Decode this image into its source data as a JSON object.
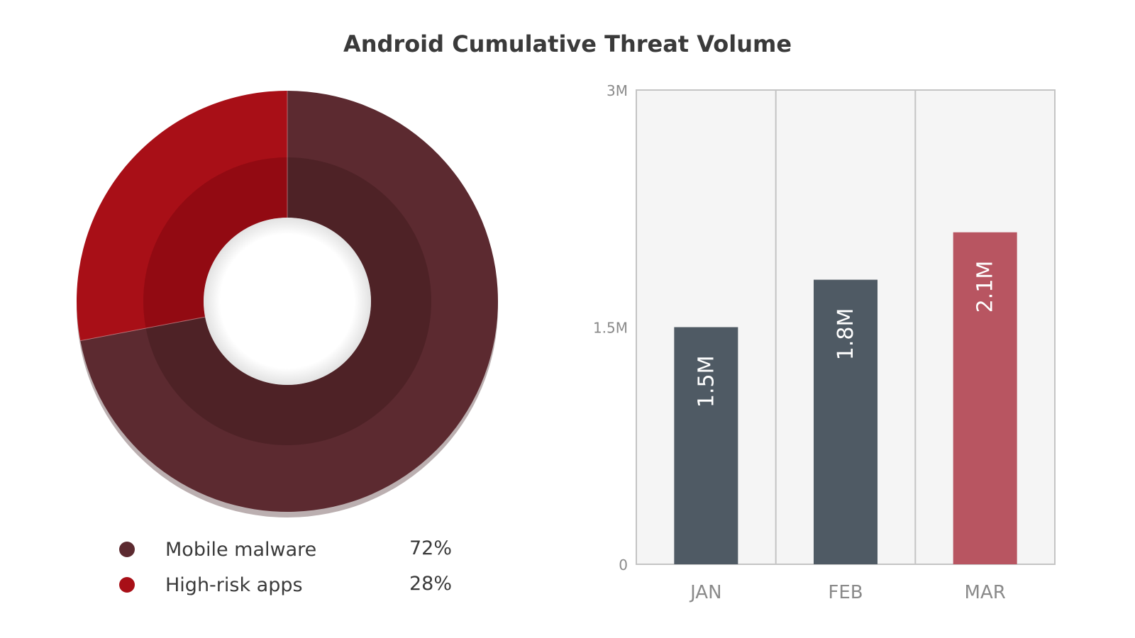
{
  "title": "Android Cumulative Threat Volume",
  "colors": {
    "malware": "#5c2a30",
    "malware_inner": "#4d2126",
    "highrisk": "#a80f17",
    "highrisk_inner": "#8f0a12",
    "bar_dark": "#4f5a64",
    "bar_highlight": "#b85561",
    "plot_bg": "#f5f5f5",
    "grid": "#c4c4c4",
    "text": "#3a3a3a",
    "tick_text": "#8a8a8a"
  },
  "chart_data": [
    {
      "type": "pie",
      "variant": "donut",
      "slices": [
        {
          "label": "Mobile malware",
          "value": 72,
          "display": "72%",
          "color": "#5c2a30"
        },
        {
          "label": "High-risk apps",
          "value": 28,
          "display": "28%",
          "color": "#a80f17"
        }
      ],
      "legend": "bottom"
    },
    {
      "type": "bar",
      "categories": [
        "JAN",
        "FEB",
        "MAR"
      ],
      "values": [
        1.5,
        1.8,
        2.1
      ],
      "value_labels": [
        "1.5M",
        "1.8M",
        "2.1M"
      ],
      "ylim": [
        0,
        3
      ],
      "yticks": [
        {
          "value": 0,
          "label": "0"
        },
        {
          "value": 1.5,
          "label": "1.5M"
        },
        {
          "value": 3,
          "label": "3M"
        }
      ],
      "bar_colors": [
        "#4f5a64",
        "#4f5a64",
        "#b85561"
      ],
      "grid": "vertical separators between categories"
    }
  ]
}
